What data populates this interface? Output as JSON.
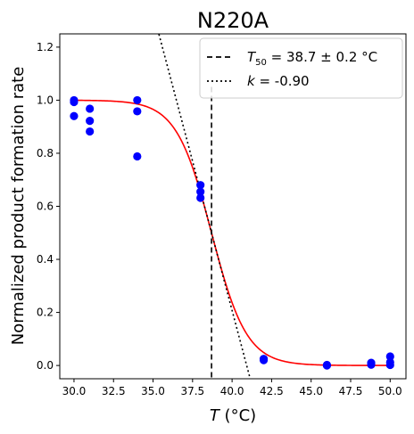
{
  "chart_data": {
    "type": "scatter",
    "title": "N220A",
    "xlabel": "T (°C)",
    "ylabel": "Normalized product formation rate",
    "xlim": [
      29.1,
      51.0
    ],
    "ylim": [
      -0.05,
      1.25
    ],
    "xticks": [
      "30.0",
      "32.5",
      "35.0",
      "37.5",
      "40.0",
      "42.5",
      "45.0",
      "47.5",
      "50.0"
    ],
    "yticks": [
      "0.0",
      "0.2",
      "0.4",
      "0.6",
      "0.8",
      "1.0",
      "1.2"
    ],
    "grid": false,
    "legend_position": "top-right",
    "points": {
      "color": "#0000ff",
      "x": [
        30,
        30,
        30,
        31,
        31,
        31,
        34,
        34,
        34,
        38,
        38,
        38,
        42,
        42,
        46,
        46,
        48.8,
        48.8,
        50,
        50,
        50
      ],
      "y": [
        1.0,
        0.993,
        0.94,
        0.968,
        0.922,
        0.882,
        1.0,
        0.958,
        0.788,
        0.68,
        0.655,
        0.632,
        0.025,
        0.02,
        0.002,
        0.0,
        0.01,
        0.003,
        0.034,
        0.012,
        0.002
      ]
    },
    "fit": {
      "color": "#ff0000",
      "model": "sigmoid",
      "t50": 38.7,
      "k": -0.9
    },
    "annotations": [
      {
        "kind": "vline",
        "style": "dashed",
        "x": 38.7,
        "label_main": "T",
        "label_sub": "50",
        "label_rest": " = 38.7 ± 0.2 °C"
      },
      {
        "kind": "tangent",
        "style": "dotted",
        "x0": 38.7,
        "y0": 0.5,
        "slope": -0.225,
        "label_main": "k",
        "label_rest": " = -0.90"
      }
    ]
  }
}
